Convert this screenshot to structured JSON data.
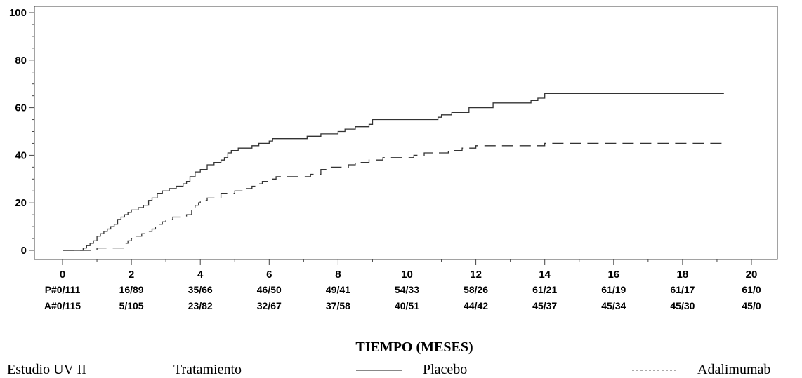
{
  "chart_data": {
    "type": "line",
    "xlabel": "TIEMPO (MESES)",
    "ylabel": "",
    "xlim": [
      0,
      20
    ],
    "ylim": [
      0,
      100
    ],
    "x_ticks": [
      "0",
      "2",
      "4",
      "6",
      "8",
      "10",
      "12",
      "14",
      "16",
      "18",
      "20"
    ],
    "y_ticks": [
      "0",
      "20",
      "40",
      "60",
      "80",
      "100"
    ],
    "series": [
      {
        "name": "Placebo",
        "color": "#333333",
        "dash": "solid",
        "x": [
          0,
          0.6,
          0.7,
          0.8,
          0.9,
          1.0,
          1.1,
          1.2,
          1.3,
          1.4,
          1.5,
          1.6,
          1.7,
          1.8,
          1.9,
          2.0,
          2.2,
          2.35,
          2.5,
          2.6,
          2.75,
          2.9,
          3.1,
          3.3,
          3.5,
          3.6,
          3.7,
          3.85,
          4.0,
          4.2,
          4.4,
          4.6,
          4.7,
          4.8,
          4.9,
          5.1,
          5.5,
          5.7,
          6.0,
          6.1,
          7.1,
          7.5,
          8.0,
          8.2,
          8.5,
          8.9,
          9.0,
          10.0,
          10.9,
          11.0,
          11.3,
          11.8,
          12.5,
          13.6,
          13.8,
          14.0,
          19.2
        ],
        "y": [
          0,
          1,
          2,
          3,
          4,
          6,
          7,
          8,
          9,
          10,
          11,
          13,
          14,
          15,
          16,
          17,
          18,
          19,
          21,
          22,
          24,
          25,
          26,
          27,
          28,
          29,
          31,
          33,
          34,
          36,
          37,
          38,
          39,
          41,
          42,
          43,
          44,
          45,
          46,
          47,
          48,
          49,
          50,
          51,
          52,
          53,
          55,
          55,
          56,
          57,
          58,
          60,
          62,
          63,
          64,
          66,
          66
        ]
      },
      {
        "name": "Adalimumab",
        "color": "#333333",
        "dash": "dashed",
        "x": [
          0,
          1.0,
          1.8,
          1.9,
          2.0,
          2.1,
          2.3,
          2.45,
          2.6,
          2.7,
          2.8,
          2.9,
          3.0,
          3.2,
          3.6,
          3.75,
          3.85,
          3.95,
          4.0,
          4.2,
          4.6,
          5.0,
          5.3,
          5.5,
          5.6,
          5.8,
          6.0,
          6.2,
          7.2,
          7.5,
          7.8,
          8.3,
          8.5,
          8.9,
          9.3,
          10.0,
          10.2,
          10.5,
          11.2,
          11.6,
          12.0,
          12.4,
          14.0,
          19.2
        ],
        "y": [
          0,
          1,
          3,
          4,
          5,
          6,
          7,
          8,
          9,
          10,
          11,
          12,
          13,
          14,
          15,
          17,
          19,
          20,
          21,
          22,
          24,
          25,
          26,
          27,
          28,
          29,
          30,
          31,
          32,
          34,
          35,
          36,
          37,
          38,
          39,
          39,
          40,
          41,
          42,
          43,
          44,
          44,
          45,
          45
        ]
      }
    ],
    "risk_table": {
      "rows": [
        {
          "label": "P#",
          "values": [
            "0/111",
            "16/89",
            "35/66",
            "46/50",
            "49/41",
            "54/33",
            "58/26",
            "61/21",
            "61/19",
            "61/17",
            "61/0"
          ]
        },
        {
          "label": "A#",
          "values": [
            "0/115",
            "5/105",
            "23/82",
            "32/67",
            "37/58",
            "40/51",
            "44/42",
            "45/37",
            "45/34",
            "45/30",
            "45/0"
          ]
        }
      ]
    },
    "legend": {
      "placement": "bottom",
      "items": [
        "Estudio UV II",
        "Tratamiento",
        "Placebo",
        "Adalimumab"
      ],
      "colors": [
        "#000000",
        "#000000",
        "#888888",
        "#aaaaaa"
      ]
    }
  }
}
